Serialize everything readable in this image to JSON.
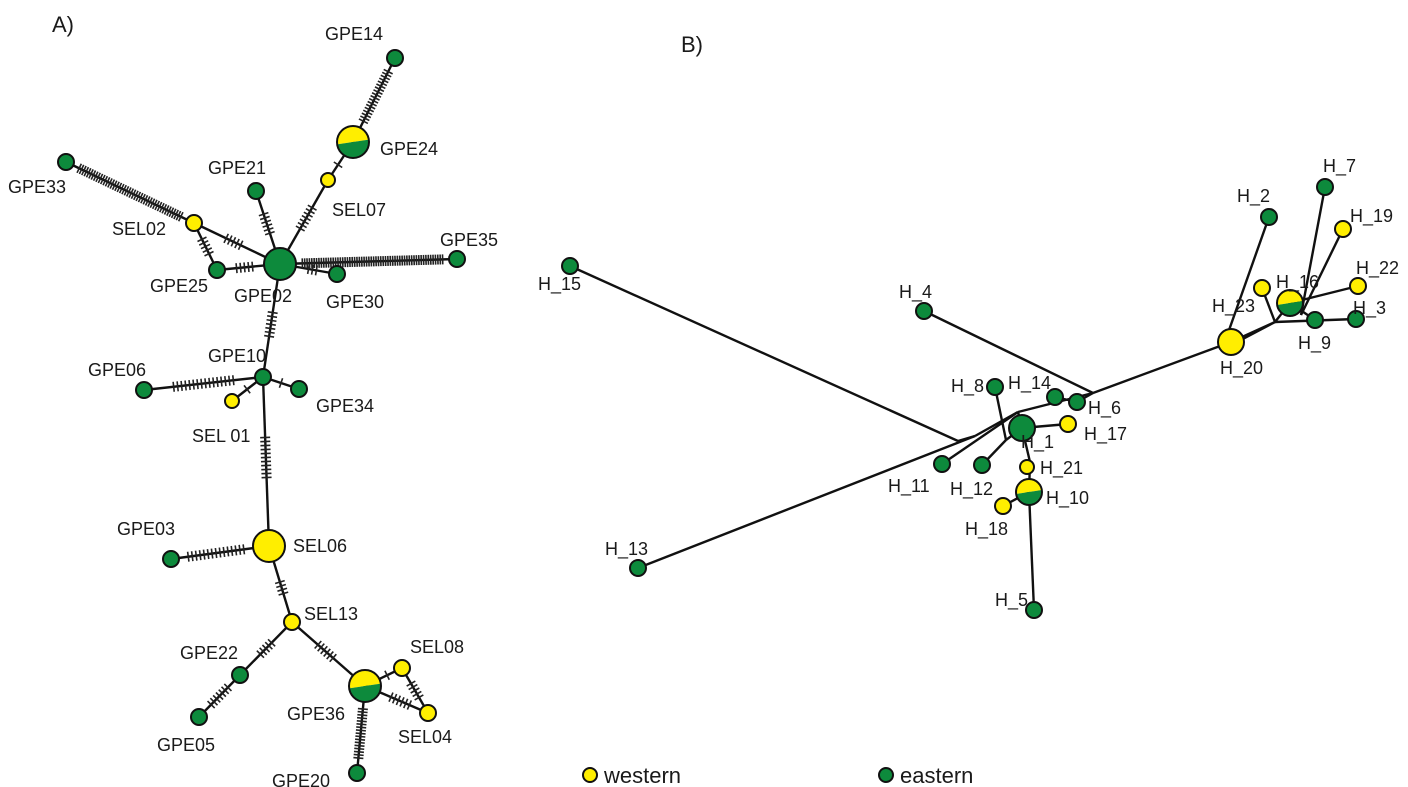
{
  "colors": {
    "western": "#ffee00",
    "eastern": "#0d8a3c"
  },
  "panels": {
    "a": {
      "label": "A)",
      "nodes": [
        {
          "id": "GPE14",
          "label": "GPE14",
          "pop": "eastern"
        },
        {
          "id": "GPE24",
          "label": "GPE24",
          "pop": "mixed"
        },
        {
          "id": "SEL07",
          "label": "SEL07",
          "pop": "western"
        },
        {
          "id": "GPE33",
          "label": "GPE33",
          "pop": "eastern"
        },
        {
          "id": "GPE21",
          "label": "GPE21",
          "pop": "eastern"
        },
        {
          "id": "SEL02",
          "label": "SEL02",
          "pop": "western"
        },
        {
          "id": "GPE35",
          "label": "GPE35",
          "pop": "eastern"
        },
        {
          "id": "GPE25",
          "label": "GPE25",
          "pop": "eastern"
        },
        {
          "id": "GPE02",
          "label": "GPE02",
          "pop": "eastern"
        },
        {
          "id": "GPE30",
          "label": "GPE30",
          "pop": "eastern"
        },
        {
          "id": "GPE10",
          "label": "GPE10",
          "pop": "eastern"
        },
        {
          "id": "GPE06",
          "label": "GPE06",
          "pop": "eastern"
        },
        {
          "id": "GPE34",
          "label": "GPE34",
          "pop": "eastern"
        },
        {
          "id": "SEL01",
          "label": "SEL 01",
          "pop": "western"
        },
        {
          "id": "GPE03",
          "label": "GPE03",
          "pop": "eastern"
        },
        {
          "id": "SEL06",
          "label": "SEL06",
          "pop": "western"
        },
        {
          "id": "SEL13",
          "label": "SEL13",
          "pop": "western"
        },
        {
          "id": "SEL08",
          "label": "SEL08",
          "pop": "western"
        },
        {
          "id": "GPE22",
          "label": "GPE22",
          "pop": "eastern"
        },
        {
          "id": "GPE36",
          "label": "GPE36",
          "pop": "mixed"
        },
        {
          "id": "GPE05",
          "label": "GPE05",
          "pop": "eastern"
        },
        {
          "id": "SEL04",
          "label": "SEL04",
          "pop": "western"
        },
        {
          "id": "GPE20",
          "label": "GPE20",
          "pop": "eastern"
        }
      ]
    },
    "b": {
      "label": "B)",
      "nodes": [
        {
          "id": "H_2",
          "label": "H_2",
          "pop": "eastern"
        },
        {
          "id": "H_7",
          "label": "H_7",
          "pop": "eastern"
        },
        {
          "id": "H_19",
          "label": "H_19",
          "pop": "western"
        },
        {
          "id": "H_22",
          "label": "H_22",
          "pop": "western"
        },
        {
          "id": "H_16",
          "label": "H_16",
          "pop": "mixed"
        },
        {
          "id": "H_23",
          "label": "H_23",
          "pop": "western"
        },
        {
          "id": "H_3",
          "label": "H_3",
          "pop": "eastern"
        },
        {
          "id": "H_9",
          "label": "H_9",
          "pop": "eastern"
        },
        {
          "id": "H_20",
          "label": "H_20",
          "pop": "western"
        },
        {
          "id": "H_15",
          "label": "H_15",
          "pop": "eastern"
        },
        {
          "id": "H_4",
          "label": "H_4",
          "pop": "eastern"
        },
        {
          "id": "H_8",
          "label": "H_8",
          "pop": "eastern"
        },
        {
          "id": "H_14",
          "label": "H_14",
          "pop": "eastern"
        },
        {
          "id": "H_6",
          "label": "H_6",
          "pop": "eastern"
        },
        {
          "id": "H_1",
          "label": "H_1",
          "pop": "eastern"
        },
        {
          "id": "H_17",
          "label": "H_17",
          "pop": "western"
        },
        {
          "id": "H_21",
          "label": "H_21",
          "pop": "western"
        },
        {
          "id": "H_11",
          "label": "H_11",
          "pop": "eastern"
        },
        {
          "id": "H_12",
          "label": "H_12",
          "pop": "eastern"
        },
        {
          "id": "H_10",
          "label": "H_10",
          "pop": "mixed"
        },
        {
          "id": "H_18",
          "label": "H_18",
          "pop": "western"
        },
        {
          "id": "H_13",
          "label": "H_13",
          "pop": "eastern"
        },
        {
          "id": "H_5",
          "label": "H_5",
          "pop": "eastern"
        }
      ]
    }
  },
  "legend": [
    {
      "label": "western",
      "pop": "western"
    },
    {
      "label": "eastern",
      "pop": "eastern"
    }
  ]
}
